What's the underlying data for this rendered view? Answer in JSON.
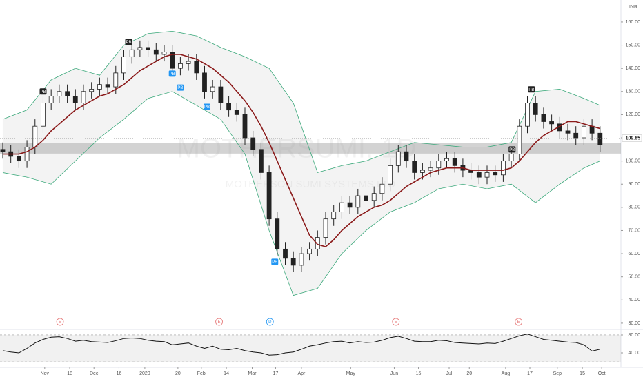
{
  "chart_data": {
    "type": "candlestick",
    "watermark": "MOTHERSUMI, 1D",
    "watermark_name": "MOTHERSON SUMI SYSTEMS LTD",
    "currency": "INR",
    "last_price": 109.85,
    "xlim": [
      -0.34,
      76.58
    ],
    "ylim": [
      27.3,
      169.5
    ],
    "yticks": [
      {
        "value": 160,
        "label": "160.00"
      },
      {
        "value": 150,
        "label": "150.00"
      },
      {
        "value": 140,
        "label": "140.00"
      },
      {
        "value": 130,
        "label": "130.00"
      },
      {
        "value": 120,
        "label": "120.00"
      },
      {
        "value": 110,
        "label": "110.00"
      },
      {
        "value": 100,
        "label": "100.00"
      },
      {
        "value": 90,
        "label": "90.00"
      },
      {
        "value": 80,
        "label": "80.00"
      },
      {
        "value": 70,
        "label": "70.00"
      },
      {
        "value": 60,
        "label": "60.00"
      },
      {
        "value": 50,
        "label": "50.00"
      },
      {
        "value": 40,
        "label": "40.00"
      },
      {
        "value": 30,
        "label": "30.00"
      }
    ],
    "xticks": [
      {
        "value": 5.2,
        "label": "Nov"
      },
      {
        "value": 8.3,
        "label": "18"
      },
      {
        "value": 11.3,
        "label": "Dec"
      },
      {
        "value": 14.4,
        "label": "16"
      },
      {
        "value": 17.6,
        "label": "2020"
      },
      {
        "value": 21.7,
        "label": "20"
      },
      {
        "value": 24.6,
        "label": "Feb"
      },
      {
        "value": 27.7,
        "label": "14"
      },
      {
        "value": 30.9,
        "label": "Mar"
      },
      {
        "value": 33.8,
        "label": "17"
      },
      {
        "value": 37,
        "label": "Apr"
      },
      {
        "value": 43.1,
        "label": "May"
      },
      {
        "value": 48.5,
        "label": "Jun"
      },
      {
        "value": 51.5,
        "label": "15"
      },
      {
        "value": 55.3,
        "label": "Jul"
      },
      {
        "value": 57.8,
        "label": "20"
      },
      {
        "value": 62.3,
        "label": "Aug"
      },
      {
        "value": 65.3,
        "label": "17"
      },
      {
        "value": 68.7,
        "label": "Sep"
      },
      {
        "value": 71.8,
        "label": "15"
      },
      {
        "value": 74.2,
        "label": "Oct"
      }
    ],
    "up_color": "#ffffff",
    "down_color": "#222222",
    "open": [
      105,
      104,
      102,
      100,
      106,
      115,
      125,
      128,
      130,
      128,
      125,
      130,
      131,
      133,
      132,
      138,
      145,
      148,
      149,
      148,
      146,
      147,
      140,
      142,
      143,
      138,
      130,
      132,
      125,
      122,
      120,
      110,
      105,
      95,
      75,
      62,
      58,
      55,
      60,
      62,
      67,
      75,
      78,
      82,
      80,
      85,
      83,
      86,
      90,
      98,
      104,
      100,
      95,
      96,
      97,
      100,
      101,
      98,
      96,
      95,
      93,
      95,
      94,
      100,
      103,
      115,
      125,
      120,
      117,
      116,
      113,
      112,
      110,
      115,
      112
    ],
    "high": [
      108,
      107,
      105,
      109,
      118,
      128,
      131,
      133,
      133,
      131,
      133,
      134,
      136,
      136,
      141,
      148,
      151,
      152,
      152,
      151,
      150,
      150,
      145,
      146,
      146,
      141,
      135,
      135,
      128,
      125,
      123,
      113,
      108,
      98,
      78,
      65,
      61,
      63,
      65,
      70,
      78,
      81,
      85,
      85,
      88,
      88,
      89,
      93,
      101,
      107,
      107,
      103,
      99,
      100,
      103,
      104,
      104,
      101,
      99,
      98,
      98,
      98,
      103,
      106,
      118,
      128,
      128,
      123,
      120,
      119,
      116,
      115,
      118,
      118,
      115
    ],
    "low": [
      101,
      99,
      97,
      97,
      103,
      112,
      122,
      125,
      125,
      122,
      122,
      127,
      128,
      129,
      129,
      135,
      142,
      145,
      145,
      143,
      143,
      137,
      137,
      139,
      135,
      127,
      127,
      122,
      119,
      117,
      107,
      102,
      92,
      72,
      59,
      55,
      52,
      52,
      57,
      59,
      64,
      72,
      75,
      77,
      77,
      80,
      80,
      83,
      87,
      95,
      97,
      92,
      92,
      93,
      94,
      97,
      95,
      93,
      92,
      90,
      90,
      91,
      91,
      97,
      100,
      112,
      117,
      114,
      113,
      110,
      109,
      107,
      107,
      109,
      104
    ],
    "close": [
      104,
      102,
      100,
      106,
      115,
      125,
      128,
      130,
      128,
      125,
      130,
      131,
      133,
      132,
      138,
      145,
      148,
      149,
      148,
      146,
      147,
      140,
      142,
      143,
      138,
      130,
      132,
      125,
      122,
      120,
      110,
      105,
      95,
      75,
      62,
      58,
      55,
      60,
      62,
      67,
      75,
      78,
      82,
      80,
      85,
      83,
      86,
      90,
      98,
      104,
      100,
      95,
      96,
      97,
      100,
      101,
      98,
      96,
      95,
      93,
      95,
      94,
      100,
      103,
      115,
      125,
      120,
      117,
      116,
      113,
      112,
      110,
      115,
      112,
      107
    ],
    "ma": {
      "color": "#8b1a1a",
      "values": [
        103,
        103,
        103,
        104,
        106,
        109,
        113,
        116,
        119,
        122,
        124,
        126,
        128,
        129,
        131,
        133,
        136,
        139,
        141,
        143,
        145,
        146,
        146,
        145,
        144,
        142,
        140,
        137,
        134,
        130,
        126,
        121,
        115,
        108,
        100,
        92,
        84,
        76,
        68,
        64,
        63,
        66,
        70,
        73,
        76,
        78,
        80,
        81,
        83,
        86,
        89,
        91,
        93,
        95,
        96,
        97,
        97,
        97,
        96,
        96,
        96,
        96,
        96,
        97,
        100,
        104,
        108,
        111,
        113,
        115,
        117,
        117,
        116,
        115,
        114
      ]
    },
    "bands": {
      "color": "#3aa87a",
      "x": [
        0,
        3,
        6,
        9,
        12,
        15,
        18,
        21,
        24,
        27,
        30,
        33,
        36,
        39,
        42,
        45,
        48,
        51,
        54,
        57,
        60,
        63,
        66,
        69,
        72,
        74
      ],
      "upper": [
        118,
        122,
        135,
        140,
        137,
        150,
        155,
        156,
        154,
        149,
        145,
        140,
        125,
        95,
        98,
        100,
        104,
        108,
        107,
        106,
        106,
        108,
        130,
        131,
        127,
        124
      ],
      "lower": [
        95,
        93,
        90,
        100,
        110,
        118,
        127,
        130,
        124,
        118,
        103,
        70,
        42,
        45,
        60,
        70,
        78,
        82,
        88,
        90,
        88,
        90,
        82,
        90,
        97,
        100
      ]
    },
    "zone": [
      103.2,
      107.7
    ],
    "annotations": [
      {
        "text": "PB",
        "x": 5,
        "y": 130,
        "color": "#222222"
      },
      {
        "text": "PB",
        "x": 15.6,
        "y": 151.4,
        "color": "#222222"
      },
      {
        "text": "PB",
        "x": 21,
        "y": 137.7,
        "color": "#2196f3"
      },
      {
        "text": "PB",
        "x": 22,
        "y": 131.7,
        "color": "#2196f3"
      },
      {
        "text": "PB",
        "x": 25.3,
        "y": 123.4,
        "color": "#2196f3"
      },
      {
        "text": "PB",
        "x": 33.7,
        "y": 56.5,
        "color": "#2196f3"
      },
      {
        "text": "PB",
        "x": 63.1,
        "y": 105,
        "color": "#222222"
      },
      {
        "text": "PB",
        "x": 65.5,
        "y": 130.9,
        "color": "#222222"
      }
    ],
    "events": [
      {
        "text": "E",
        "x": 7.1,
        "color": "#e57373"
      },
      {
        "text": "E",
        "x": 26.8,
        "color": "#e57373"
      },
      {
        "text": "D",
        "x": 33.1,
        "color": "#2196f3"
      },
      {
        "text": "E",
        "x": 48.7,
        "color": "#e57373"
      },
      {
        "text": "E",
        "x": 63.9,
        "color": "#e57373"
      }
    ],
    "rsi": {
      "color": "#111111",
      "ylim": [
        10.8,
        89.2
      ],
      "band": [
        20,
        80
      ],
      "yticks": [
        {
          "value": 80,
          "label": "80.00"
        },
        {
          "value": 40,
          "label": "40.00"
        }
      ],
      "values": [
        45,
        42,
        40,
        50,
        62,
        70,
        75,
        76,
        72,
        66,
        68,
        65,
        64,
        63,
        67,
        72,
        73,
        72,
        68,
        66,
        65,
        58,
        60,
        62,
        55,
        50,
        55,
        48,
        47,
        50,
        45,
        42,
        40,
        35,
        36,
        40,
        42,
        48,
        55,
        58,
        62,
        65,
        66,
        62,
        65,
        63,
        64,
        68,
        74,
        77,
        72,
        66,
        65,
        65,
        68,
        67,
        63,
        62,
        61,
        60,
        62,
        61,
        66,
        72,
        78,
        82,
        76,
        70,
        68,
        66,
        64,
        63,
        58,
        44,
        48
      ]
    }
  }
}
